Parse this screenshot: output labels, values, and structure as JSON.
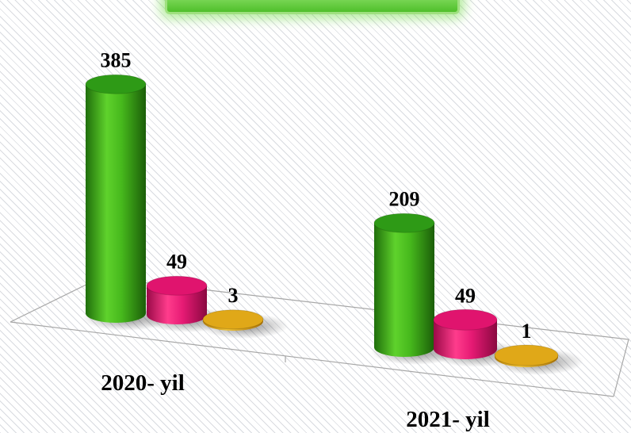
{
  "chart_data": {
    "type": "bar",
    "style": "3d-cylinder",
    "categories": [
      "2020- yil",
      "2021- yil"
    ],
    "series": [
      {
        "color": "#2e9a16",
        "values": [
          385,
          209
        ]
      },
      {
        "color": "#e0146e",
        "values": [
          49,
          49
        ]
      },
      {
        "color": "#e0a818",
        "values": [
          3,
          1
        ]
      }
    ],
    "title": "",
    "xlabel": "",
    "ylabel": "",
    "grid": false
  }
}
